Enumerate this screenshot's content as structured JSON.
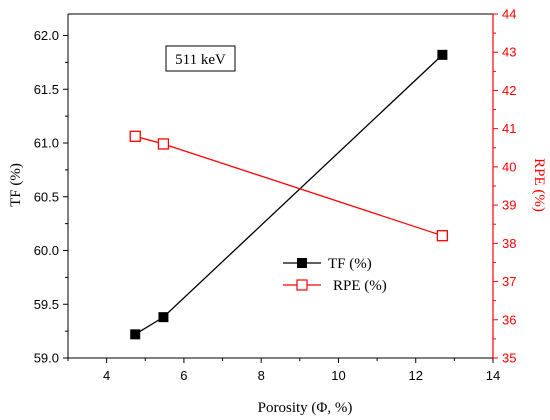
{
  "chart_data": {
    "type": "line",
    "annotation": "511 keV",
    "xlabel": "Porosity (Φ, %)",
    "ylabel_left": "TF (%)",
    "ylabel_right": "RPE (%)",
    "xlim": [
      3,
      14
    ],
    "ylim_left": [
      59.0,
      62.2
    ],
    "ylim_right": [
      35,
      44
    ],
    "x_ticks": [
      "4",
      "6",
      "8",
      "10",
      "12",
      "14"
    ],
    "y_left_ticks": [
      "59.0",
      "59.5",
      "60.0",
      "60.5",
      "61.0",
      "61.5",
      "62.0"
    ],
    "y_right_ticks": [
      "35",
      "36",
      "37",
      "38",
      "39",
      "40",
      "41",
      "42",
      "43",
      "44"
    ],
    "grid": false,
    "legend_position": "lower-right",
    "series": [
      {
        "name": "TF (%)",
        "axis": "left",
        "color": "#000000",
        "marker": "filled-square",
        "x": [
          4.74,
          5.47,
          12.69
        ],
        "y": [
          59.22,
          59.38,
          61.82
        ]
      },
      {
        "name": "RPE (%)",
        "axis": "right",
        "color": "#ff0000",
        "marker": "open-square",
        "x": [
          4.74,
          5.47,
          12.69
        ],
        "y": [
          40.8,
          40.6,
          38.2
        ]
      }
    ]
  }
}
